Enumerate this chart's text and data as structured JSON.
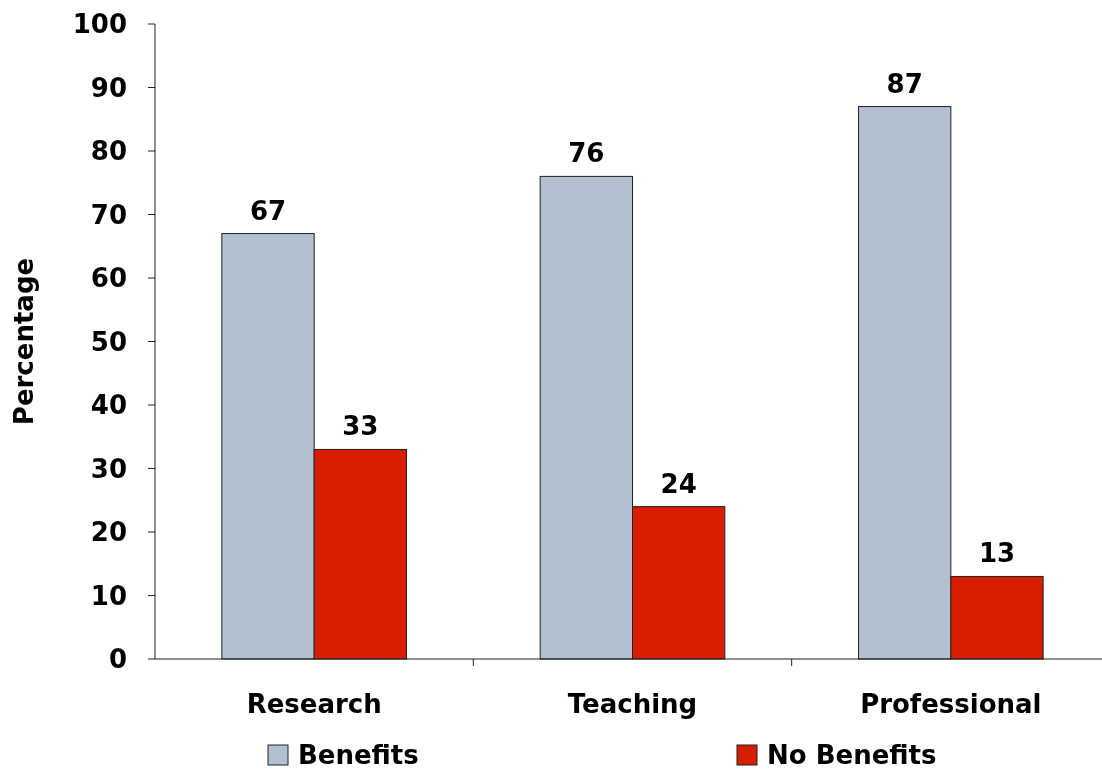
{
  "chart_data": {
    "type": "bar",
    "ylabel": "Percentage",
    "categories": [
      "Research",
      "Teaching",
      "Professional"
    ],
    "series": [
      {
        "name": "Benefits",
        "color": "#b3c0cf",
        "values": [
          67,
          76,
          87
        ]
      },
      {
        "name": "No Benefits",
        "color": "#d81e00",
        "values": [
          33,
          24,
          13
        ]
      }
    ],
    "ylim": [
      0,
      100
    ],
    "yticks": [
      0,
      10,
      20,
      30,
      40,
      50,
      60,
      70,
      80,
      90,
      100
    ],
    "data_labels": true,
    "legend": "bottom",
    "grid": false
  }
}
